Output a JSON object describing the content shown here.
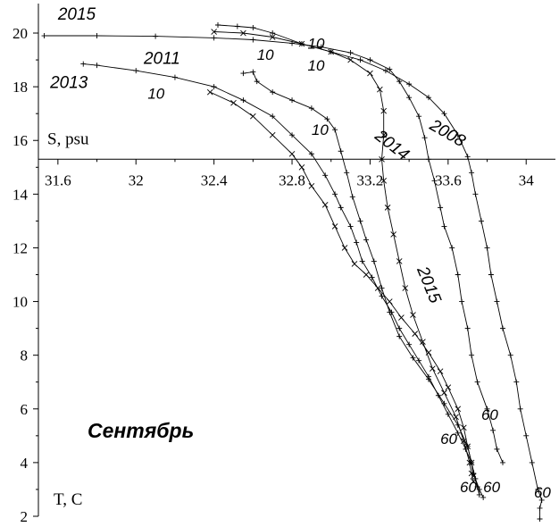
{
  "chart_data": {
    "type": "scatter",
    "title": "Сентябрь",
    "xlabel": "S, psu",
    "ylabel": "T, C",
    "xlim": [
      31.5,
      34.15
    ],
    "ylim": [
      2,
      20.3
    ],
    "xticks": [
      "31.6",
      "32",
      "32.4",
      "32.8",
      "33.2",
      "33.6",
      "34"
    ],
    "yticks": [
      "2",
      "4",
      "6",
      "8",
      "10",
      "12",
      "14",
      "16",
      "18",
      "20"
    ],
    "x_axis_at_y": 15.3,
    "y_axis_at_x": 31.5,
    "grid": false,
    "series": [
      {
        "name": "2015",
        "marker": "plus",
        "points": [
          [
            31.53,
            19.9
          ],
          [
            31.8,
            19.9
          ],
          [
            32.1,
            19.88
          ],
          [
            32.4,
            19.82
          ],
          [
            32.6,
            19.75
          ],
          [
            32.8,
            19.62
          ],
          [
            32.95,
            19.48
          ],
          [
            33.1,
            19.27
          ],
          [
            33.2,
            19.0
          ],
          [
            33.3,
            18.65
          ],
          [
            33.35,
            18.2
          ],
          [
            33.4,
            17.6
          ],
          [
            33.45,
            16.9
          ],
          [
            33.48,
            16.1
          ],
          [
            33.5,
            15.3
          ],
          [
            33.53,
            14.5
          ],
          [
            33.56,
            13.5
          ],
          [
            33.58,
            12.8
          ],
          [
            33.62,
            12.0
          ],
          [
            33.65,
            11.0
          ],
          [
            33.67,
            10.0
          ],
          [
            33.7,
            9.0
          ],
          [
            33.72,
            8.0
          ],
          [
            33.75,
            7.0
          ],
          [
            33.8,
            6.0
          ],
          [
            33.83,
            5.2
          ],
          [
            33.85,
            4.5
          ],
          [
            33.88,
            4.0
          ]
        ]
      },
      {
        "name": "2008",
        "marker": "plus",
        "points": [
          [
            32.42,
            20.3
          ],
          [
            32.52,
            20.25
          ],
          [
            32.6,
            20.2
          ],
          [
            32.7,
            20.0
          ],
          [
            32.85,
            19.6
          ],
          [
            33.0,
            19.3
          ],
          [
            33.15,
            19.0
          ],
          [
            33.28,
            18.6
          ],
          [
            33.4,
            18.1
          ],
          [
            33.5,
            17.6
          ],
          [
            33.58,
            17.0
          ],
          [
            33.65,
            16.2
          ],
          [
            33.7,
            15.4
          ],
          [
            33.72,
            14.8
          ],
          [
            33.74,
            14.0
          ],
          [
            33.77,
            13.0
          ],
          [
            33.8,
            12.0
          ],
          [
            33.82,
            11.0
          ],
          [
            33.85,
            10.0
          ],
          [
            33.88,
            9.0
          ],
          [
            33.92,
            8.0
          ],
          [
            33.95,
            7.0
          ],
          [
            33.97,
            6.0
          ],
          [
            34.0,
            5.0
          ],
          [
            34.03,
            4.0
          ],
          [
            34.06,
            3.0
          ],
          [
            34.08,
            2.6
          ],
          [
            34.07,
            2.3
          ],
          [
            34.07,
            1.9
          ]
        ]
      },
      {
        "name": "2011",
        "marker": "plus",
        "points": [
          [
            32.55,
            18.5
          ],
          [
            32.6,
            18.55
          ],
          [
            32.62,
            18.2
          ],
          [
            32.7,
            17.8
          ],
          [
            32.8,
            17.5
          ],
          [
            32.9,
            17.2
          ],
          [
            32.98,
            16.8
          ],
          [
            33.02,
            16.4
          ],
          [
            33.05,
            15.6
          ],
          [
            33.08,
            14.8
          ],
          [
            33.11,
            13.9
          ],
          [
            33.15,
            13.0
          ],
          [
            33.18,
            12.3
          ],
          [
            33.22,
            11.5
          ],
          [
            33.26,
            10.5
          ],
          [
            33.3,
            9.6
          ],
          [
            33.35,
            8.7
          ],
          [
            33.42,
            7.9
          ],
          [
            33.5,
            7.1
          ],
          [
            33.58,
            6.2
          ],
          [
            33.65,
            5.4
          ],
          [
            33.7,
            4.6
          ],
          [
            33.72,
            4.0
          ],
          [
            33.74,
            3.4
          ],
          [
            33.76,
            3.0
          ],
          [
            33.78,
            2.7
          ]
        ]
      },
      {
        "name": "2013",
        "marker": "plus",
        "points": [
          [
            31.73,
            18.85
          ],
          [
            31.8,
            18.8
          ],
          [
            32.0,
            18.6
          ],
          [
            32.2,
            18.35
          ],
          [
            32.4,
            18.0
          ],
          [
            32.55,
            17.5
          ],
          [
            32.7,
            16.9
          ],
          [
            32.8,
            16.2
          ],
          [
            32.9,
            15.5
          ],
          [
            32.97,
            14.7
          ],
          [
            33.02,
            14.0
          ],
          [
            33.05,
            13.5
          ],
          [
            33.1,
            12.8
          ],
          [
            33.13,
            12.2
          ],
          [
            33.16,
            11.5
          ],
          [
            33.21,
            10.9
          ],
          [
            33.26,
            10.2
          ],
          [
            33.31,
            9.6
          ],
          [
            33.35,
            9.0
          ],
          [
            33.4,
            8.4
          ],
          [
            33.45,
            7.8
          ],
          [
            33.5,
            7.2
          ],
          [
            33.55,
            6.5
          ],
          [
            33.6,
            5.8
          ],
          [
            33.65,
            5.1
          ],
          [
            33.69,
            4.5
          ],
          [
            33.72,
            4.0
          ],
          [
            33.73,
            3.6
          ],
          [
            33.75,
            3.1
          ],
          [
            33.76,
            2.8
          ]
        ]
      },
      {
        "name": "2014",
        "marker": "x",
        "points": [
          [
            32.4,
            20.05
          ],
          [
            32.55,
            20.0
          ],
          [
            32.7,
            19.85
          ],
          [
            32.85,
            19.6
          ],
          [
            33.0,
            19.3
          ],
          [
            33.1,
            19.0
          ],
          [
            33.2,
            18.5
          ],
          [
            33.25,
            17.9
          ],
          [
            33.27,
            17.1
          ],
          [
            33.27,
            16.2
          ],
          [
            33.26,
            15.3
          ],
          [
            33.27,
            14.5
          ],
          [
            33.29,
            13.5
          ],
          [
            33.32,
            12.5
          ],
          [
            33.35,
            11.5
          ],
          [
            33.38,
            10.5
          ],
          [
            33.42,
            9.5
          ],
          [
            33.47,
            8.5
          ],
          [
            33.52,
            7.5
          ],
          [
            33.58,
            6.6
          ],
          [
            33.64,
            5.7
          ],
          [
            33.68,
            4.8
          ],
          [
            33.71,
            4.0
          ],
          [
            33.72,
            3.6
          ],
          [
            33.73,
            3.3
          ]
        ]
      },
      {
        "name": "",
        "marker": "x",
        "points": [
          [
            32.38,
            17.8
          ],
          [
            32.5,
            17.4
          ],
          [
            32.6,
            16.9
          ],
          [
            32.7,
            16.2
          ],
          [
            32.8,
            15.5
          ],
          [
            32.85,
            15.0
          ],
          [
            32.9,
            14.3
          ],
          [
            32.97,
            13.6
          ],
          [
            33.02,
            12.8
          ],
          [
            33.07,
            12.0
          ],
          [
            33.12,
            11.4
          ],
          [
            33.18,
            11.0
          ],
          [
            33.24,
            10.5
          ],
          [
            33.3,
            10.0
          ],
          [
            33.36,
            9.4
          ],
          [
            33.43,
            8.8
          ],
          [
            33.5,
            8.1
          ],
          [
            33.56,
            7.4
          ],
          [
            33.6,
            6.8
          ],
          [
            33.65,
            6.0
          ],
          [
            33.68,
            5.3
          ],
          [
            33.7,
            4.6
          ],
          [
            33.72,
            4.0
          ],
          [
            33.73,
            3.5
          ]
        ]
      }
    ],
    "annotations": [
      {
        "text": "2015",
        "x": 31.6,
        "y": 20.5,
        "rotate": 0,
        "class": "series-label"
      },
      {
        "text": "2011",
        "x": 32.04,
        "y": 18.85,
        "rotate": 0,
        "class": "series-label"
      },
      {
        "text": "2013",
        "x": 31.56,
        "y": 17.95,
        "rotate": 0,
        "class": "series-label"
      },
      {
        "text": "2014",
        "x": 33.22,
        "y": 16.1,
        "rotate": 38,
        "class": "series-label"
      },
      {
        "text": "2008",
        "x": 33.5,
        "y": 16.45,
        "rotate": 30,
        "class": "series-label"
      },
      {
        "text": "2015",
        "x": 33.44,
        "y": 11.2,
        "rotate": 68,
        "class": "series-label"
      },
      {
        "text": "10",
        "x": 32.88,
        "y": 19.42,
        "rotate": 0,
        "class": "depth-label"
      },
      {
        "text": "10",
        "x": 32.62,
        "y": 19.0,
        "rotate": 0,
        "class": "depth-label"
      },
      {
        "text": "10",
        "x": 32.88,
        "y": 18.6,
        "rotate": 0,
        "class": "depth-label"
      },
      {
        "text": "10",
        "x": 32.06,
        "y": 17.55,
        "rotate": 0,
        "class": "depth-label"
      },
      {
        "text": "10",
        "x": 32.9,
        "y": 16.2,
        "rotate": 0,
        "class": "depth-label"
      },
      {
        "text": "60",
        "x": 33.77,
        "y": 5.6,
        "rotate": 0,
        "class": "depth-label"
      },
      {
        "text": "60",
        "x": 33.56,
        "y": 4.7,
        "rotate": 0,
        "class": "depth-label"
      },
      {
        "text": "60",
        "x": 33.66,
        "y": 2.9,
        "rotate": 0,
        "class": "depth-label"
      },
      {
        "text": "60",
        "x": 33.78,
        "y": 2.9,
        "rotate": 0,
        "class": "depth-label"
      },
      {
        "text": "60",
        "x": 34.04,
        "y": 2.7,
        "rotate": 0,
        "class": "depth-label"
      }
    ]
  }
}
